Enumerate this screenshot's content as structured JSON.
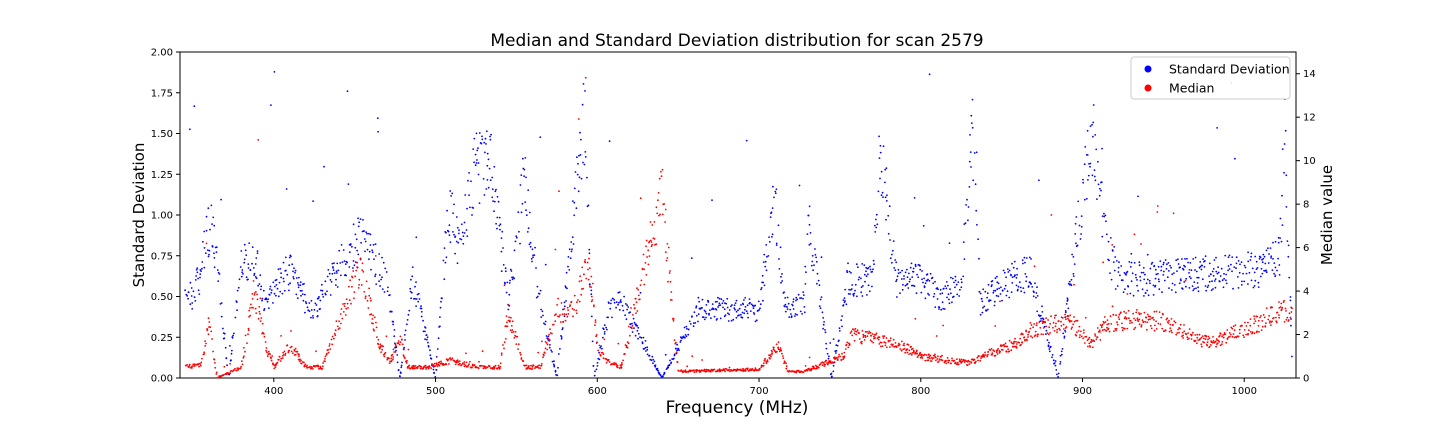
{
  "chart_data": {
    "type": "scatter",
    "title": "Median and Standard Deviation distribution for scan 2579",
    "xlabel": "Frequency (MHz)",
    "ylabel_left": "Standard Deviation",
    "ylabel_right": "Median value",
    "xlim": [
      342,
      1032
    ],
    "ylim_left": [
      0,
      2.0
    ],
    "ylim_right": [
      0,
      15
    ],
    "x_ticks": [
      "400",
      "500",
      "600",
      "700",
      "800",
      "900",
      "1000"
    ],
    "y_ticks_left": [
      "0.00",
      "0.25",
      "0.50",
      "0.75",
      "1.00",
      "1.25",
      "1.50",
      "1.75",
      "2.00"
    ],
    "y_ticks_right": [
      "0",
      "2",
      "4",
      "6",
      "8",
      "10",
      "12",
      "14"
    ],
    "grid": false,
    "legend_position": "top-right",
    "series": [
      {
        "name": "Standard Deviation",
        "axis": "left",
        "color": "#0000ff",
        "profile": [
          [
            345,
            0.55
          ],
          [
            350,
            0.5
          ],
          [
            355,
            0.65
          ],
          [
            358,
            0.85
          ],
          [
            362,
            0.95
          ],
          [
            372,
            0.0
          ],
          [
            380,
            0.7
          ],
          [
            388,
            0.75
          ],
          [
            395,
            0.42
          ],
          [
            402,
            0.6
          ],
          [
            410,
            0.65
          ],
          [
            418,
            0.5
          ],
          [
            425,
            0.4
          ],
          [
            435,
            0.6
          ],
          [
            445,
            0.75
          ],
          [
            455,
            0.9
          ],
          [
            463,
            0.7
          ],
          [
            470,
            0.6
          ],
          [
            478,
            0.0
          ],
          [
            486,
            0.6
          ],
          [
            500,
            0.0
          ],
          [
            508,
            1.05
          ],
          [
            515,
            0.8
          ],
          [
            525,
            1.3
          ],
          [
            535,
            1.3
          ],
          [
            545,
            0.45
          ],
          [
            555,
            1.2
          ],
          [
            562,
            0.6
          ],
          [
            575,
            0.0
          ],
          [
            592,
            1.6
          ],
          [
            598,
            0.0
          ],
          [
            608,
            0.45
          ],
          [
            616,
            0.45
          ],
          [
            640,
            0.0
          ],
          [
            662,
            0.42
          ],
          [
            700,
            0.42
          ],
          [
            710,
            1.1
          ],
          [
            716,
            0.42
          ],
          [
            728,
            0.45
          ],
          [
            730,
            1.0
          ],
          [
            745,
            0.0
          ],
          [
            755,
            0.6
          ],
          [
            770,
            0.6
          ],
          [
            775,
            1.4
          ],
          [
            785,
            0.6
          ],
          [
            800,
            0.6
          ],
          [
            812,
            0.5
          ],
          [
            825,
            0.55
          ],
          [
            832,
            1.5
          ],
          [
            837,
            0.45
          ],
          [
            848,
            0.55
          ],
          [
            860,
            0.62
          ],
          [
            868,
            0.64
          ],
          [
            885,
            0.0
          ],
          [
            893,
            0.63
          ],
          [
            906,
            1.5
          ],
          [
            915,
            0.8
          ],
          [
            922,
            0.62
          ],
          [
            940,
            0.6
          ],
          [
            960,
            0.64
          ],
          [
            985,
            0.65
          ],
          [
            1010,
            0.66
          ],
          [
            1022,
            0.75
          ],
          [
            1025,
            1.5
          ],
          [
            1030,
            0.0
          ]
        ]
      },
      {
        "name": "Median",
        "axis": "right",
        "color": "#ff0000",
        "profile": [
          [
            345,
            0.5
          ],
          [
            355,
            0.6
          ],
          [
            360,
            2.5
          ],
          [
            365,
            0.0
          ],
          [
            380,
            0.5
          ],
          [
            388,
            4.0
          ],
          [
            395,
            1.5
          ],
          [
            400,
            0.5
          ],
          [
            410,
            1.5
          ],
          [
            420,
            0.5
          ],
          [
            430,
            0.5
          ],
          [
            440,
            2.5
          ],
          [
            452,
            5.0
          ],
          [
            458,
            4.0
          ],
          [
            465,
            1.5
          ],
          [
            472,
            0.8
          ],
          [
            478,
            1.8
          ],
          [
            483,
            0.5
          ],
          [
            495,
            0.5
          ],
          [
            510,
            0.8
          ],
          [
            525,
            0.5
          ],
          [
            540,
            0.5
          ],
          [
            545,
            3.0
          ],
          [
            555,
            0.5
          ],
          [
            565,
            0.5
          ],
          [
            575,
            3.0
          ],
          [
            585,
            3.0
          ],
          [
            595,
            5.5
          ],
          [
            600,
            1.5
          ],
          [
            605,
            0.8
          ],
          [
            615,
            0.5
          ],
          [
            640,
            8.5
          ],
          [
            650,
            0.3
          ],
          [
            700,
            0.4
          ],
          [
            712,
            1.5
          ],
          [
            718,
            0.3
          ],
          [
            728,
            0.3
          ],
          [
            752,
            1.0
          ],
          [
            758,
            2.0
          ],
          [
            770,
            1.8
          ],
          [
            785,
            1.6
          ],
          [
            800,
            1.0
          ],
          [
            815,
            0.8
          ],
          [
            830,
            0.7
          ],
          [
            845,
            1.2
          ],
          [
            860,
            1.6
          ],
          [
            868,
            2.2
          ],
          [
            885,
            2.5
          ],
          [
            895,
            2.5
          ],
          [
            905,
            1.5
          ],
          [
            915,
            2.5
          ],
          [
            930,
            2.7
          ],
          [
            950,
            2.6
          ],
          [
            960,
            2.2
          ],
          [
            970,
            1.8
          ],
          [
            980,
            1.6
          ],
          [
            990,
            2.0
          ],
          [
            1000,
            2.2
          ],
          [
            1010,
            2.6
          ],
          [
            1020,
            3.0
          ],
          [
            1030,
            3.2
          ]
        ]
      }
    ]
  },
  "legend": {
    "items": [
      {
        "label": "Standard Deviation",
        "color": "#0000ff"
      },
      {
        "label": "Median",
        "color": "#ff0000"
      }
    ]
  }
}
